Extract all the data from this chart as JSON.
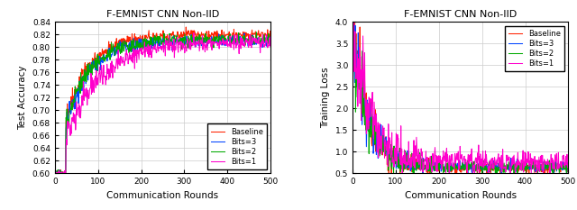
{
  "title": "F-EMNIST CNN Non-IID",
  "xlabel": "Communication Rounds",
  "ylabel_left": "Test Accuracy",
  "ylabel_right": "Training Loss",
  "xlim": [
    0,
    500
  ],
  "ylim_left": [
    0.6,
    0.84
  ],
  "ylim_right": [
    0.5,
    4.0
  ],
  "yticks_left": [
    0.6,
    0.62,
    0.64,
    0.66,
    0.68,
    0.7,
    0.72,
    0.74,
    0.76,
    0.78,
    0.8,
    0.82,
    0.84
  ],
  "yticks_right": [
    0.5,
    1.0,
    1.5,
    2.0,
    2.5,
    3.0,
    3.5,
    4.0
  ],
  "xticks": [
    0,
    100,
    200,
    300,
    400,
    500
  ],
  "colors": {
    "baseline": "#ff2200",
    "bits3": "#0044ff",
    "bits2": "#00aa00",
    "bits1": "#ff00cc"
  },
  "legend_labels": [
    "Baseline",
    "Bits=3",
    "Bits=2",
    "Bits=1"
  ],
  "n_rounds": 500,
  "seed": 42
}
